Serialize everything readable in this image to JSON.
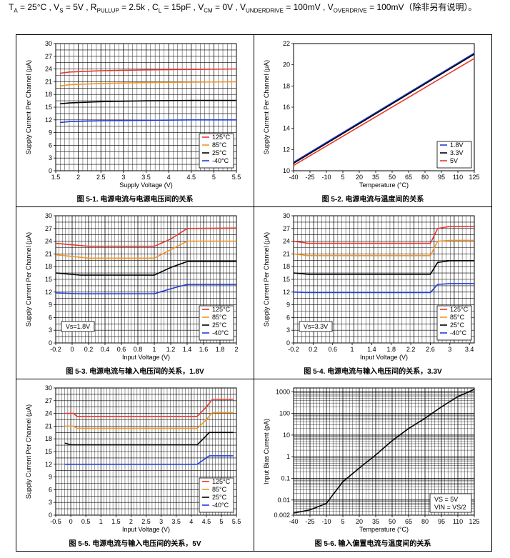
{
  "conditions": {
    "ta": "T",
    "ta_sub": "A",
    "ta_val": " = 25°C , V",
    "vs_sub": "S",
    "vs_val": " = 5V , R",
    "rp_sub": "PULLUP",
    "rp_val": " = 2.5k , C",
    "cl_sub": "L",
    "cl_val": " = 15pF , V",
    "vcm_sub": "CM",
    "vcm_val": " = 0V , V",
    "vu_sub": "UNDERDRIVE",
    "vu_val": " = 100mV , V",
    "vo_sub": "OVERDRIVE",
    "vo_val": " = 100mV（除非另有说明）。"
  },
  "chart_data": [
    {
      "id": "c1",
      "type": "line",
      "caption": "图 5-1. 电源电流与电源电压间的关系",
      "xlabel": "Supply Voltage (V)",
      "ylabel": "Supply Current Per Channel (μA)",
      "xlim": [
        1.5,
        5.5
      ],
      "ylim": [
        0,
        30
      ],
      "xticks": [
        1.5,
        2,
        2.5,
        3,
        3.5,
        4,
        4.5,
        5,
        5.5
      ],
      "xtick_labels": [
        "1.5",
        "2",
        "2.5",
        "3",
        "3.5",
        "4",
        "4.5",
        "5",
        "5.5"
      ],
      "yticks": [
        0,
        3,
        6,
        9,
        12,
        15,
        18,
        21,
        24,
        27,
        30
      ],
      "ytick_labels": [
        "0",
        "3",
        "6",
        "9",
        "12",
        "15",
        "18",
        "21",
        "24",
        "27",
        "30"
      ],
      "grid": true,
      "legend_position": "bottom-right",
      "annotation": "",
      "series": [
        {
          "name": "125°C",
          "color": "#e8372c",
          "x": [
            1.6,
            1.8,
            2.5,
            3.5,
            4.5,
            5.5
          ],
          "y": [
            23.0,
            23.3,
            23.6,
            23.8,
            23.9,
            24.0
          ]
        },
        {
          "name": "85°C",
          "color": "#f29422",
          "x": [
            1.6,
            1.8,
            2.5,
            3.5,
            4.5,
            5.5
          ],
          "y": [
            20.0,
            20.3,
            20.6,
            20.8,
            20.9,
            21.0
          ]
        },
        {
          "name": "25°C",
          "color": "#000000",
          "x": [
            1.6,
            1.8,
            2.5,
            3.5,
            4.5,
            5.5
          ],
          "y": [
            15.8,
            16.0,
            16.3,
            16.5,
            16.6,
            16.6
          ]
        },
        {
          "name": "-40°C",
          "color": "#1f3fd8",
          "x": [
            1.6,
            1.8,
            2.5,
            3.5,
            4.5,
            5.5
          ],
          "y": [
            11.4,
            11.6,
            11.8,
            11.9,
            12.0,
            12.0
          ]
        }
      ]
    },
    {
      "id": "c2",
      "type": "line",
      "caption": "图 5-2. 电源电流与温度间的关系",
      "xlabel": "Temperature (°C)",
      "ylabel": "Supply Current Per Channel (μA)",
      "xlim": [
        -40,
        125
      ],
      "ylim": [
        10,
        22
      ],
      "xticks": [
        -40,
        -25,
        -10,
        5,
        20,
        35,
        50,
        65,
        80,
        95,
        110,
        125
      ],
      "xtick_labels": [
        "-40",
        "-25",
        "-10",
        "5",
        "20",
        "35",
        "50",
        "65",
        "80",
        "95",
        "110",
        "125"
      ],
      "yticks": [
        10,
        12,
        14,
        16,
        18,
        20,
        22
      ],
      "ytick_labels": [
        "10",
        "12",
        "14",
        "16",
        "18",
        "20",
        "22"
      ],
      "grid": false,
      "legend_position": "bottom-right",
      "annotation": "",
      "series": [
        {
          "name": "1.8V",
          "color": "#1f3fd8",
          "x": [
            -40,
            125
          ],
          "y": [
            10.8,
            21.1
          ]
        },
        {
          "name": "3.3V",
          "color": "#000000",
          "x": [
            -40,
            125
          ],
          "y": [
            10.7,
            21.0
          ]
        },
        {
          "name": "5V",
          "color": "#e8372c",
          "x": [
            -40,
            125
          ],
          "y": [
            10.5,
            20.6
          ]
        }
      ]
    },
    {
      "id": "c3",
      "type": "line",
      "caption": "图 5-3. 电源电流与输入电压间的关系，1.8V",
      "xlabel": "Input Voltage (V)",
      "ylabel": "Supply Current Per Channel (μA)",
      "xlim": [
        -0.2,
        2
      ],
      "ylim": [
        0,
        30
      ],
      "xticks": [
        -0.2,
        0,
        0.2,
        0.4,
        0.6,
        0.8,
        1,
        1.2,
        1.4,
        1.6,
        1.8,
        2
      ],
      "xtick_labels": [
        "-0.2",
        "0",
        "0.2",
        "0.4",
        "0.6",
        "0.8",
        "1",
        "1.2",
        "1.4",
        "1.6",
        "1.8",
        "2"
      ],
      "yticks": [
        0,
        3,
        6,
        9,
        12,
        15,
        18,
        21,
        24,
        27,
        30
      ],
      "ytick_labels": [
        "0",
        "3",
        "6",
        "9",
        "12",
        "15",
        "18",
        "21",
        "24",
        "27",
        "30"
      ],
      "grid": true,
      "legend_position": "bottom-right",
      "annotation": "Vs=1.8V",
      "series": [
        {
          "name": "125°C",
          "color": "#e8372c",
          "x": [
            -0.2,
            0.2,
            1.0,
            1.2,
            1.4,
            2.0
          ],
          "y": [
            23.5,
            22.8,
            22.8,
            24.5,
            27.0,
            27.1
          ]
        },
        {
          "name": "85°C",
          "color": "#f29422",
          "x": [
            -0.2,
            0.2,
            1.0,
            1.2,
            1.4,
            2.0
          ],
          "y": [
            20.8,
            20.0,
            20.0,
            22.0,
            24.0,
            24.0
          ]
        },
        {
          "name": "25°C",
          "color": "#000000",
          "x": [
            -0.2,
            0.1,
            1.0,
            1.2,
            1.4,
            2.0
          ],
          "y": [
            16.5,
            16.0,
            16.0,
            17.8,
            19.2,
            19.2
          ]
        },
        {
          "name": "-40°C",
          "color": "#1f3fd8",
          "x": [
            -0.2,
            0.1,
            1.0,
            1.2,
            1.4,
            2.0
          ],
          "y": [
            11.8,
            11.6,
            11.6,
            12.8,
            13.8,
            13.8
          ]
        }
      ]
    },
    {
      "id": "c4",
      "type": "line",
      "caption": "图 5-4. 电源电流与输入电压间的关系，3.3V",
      "xlabel": "Input Voltage (V)",
      "ylabel": "Supply Current Per Channel (μA)",
      "xlim": [
        -0.2,
        3.5
      ],
      "ylim": [
        0,
        30
      ],
      "xticks": [
        -0.2,
        0.2,
        0.6,
        1,
        1.4,
        1.8,
        2.2,
        2.6,
        3,
        3.4
      ],
      "xtick_labels": [
        "-0.2",
        "0.2",
        "0.6",
        "1",
        "1.4",
        "1.8",
        "2.2",
        "2.6",
        "3",
        "3.4"
      ],
      "yticks": [
        0,
        3,
        6,
        9,
        12,
        15,
        18,
        21,
        24,
        27,
        30
      ],
      "ytick_labels": [
        "0",
        "3",
        "6",
        "9",
        "12",
        "15",
        "18",
        "21",
        "24",
        "27",
        "30"
      ],
      "grid": true,
      "legend_position": "bottom-right",
      "annotation": "Vs=3.3V",
      "series": [
        {
          "name": "125°C",
          "color": "#e8372c",
          "x": [
            -0.2,
            0.1,
            2.6,
            2.75,
            3.0,
            3.5
          ],
          "y": [
            24.0,
            23.5,
            23.5,
            27.0,
            27.5,
            27.5
          ]
        },
        {
          "name": "85°C",
          "color": "#f29422",
          "x": [
            -0.2,
            0.1,
            2.6,
            2.75,
            3.0,
            3.5
          ],
          "y": [
            21.0,
            20.6,
            20.6,
            24.0,
            24.2,
            24.2
          ]
        },
        {
          "name": "25°C",
          "color": "#000000",
          "x": [
            -0.2,
            0.1,
            2.6,
            2.75,
            3.0,
            3.5
          ],
          "y": [
            16.5,
            16.2,
            16.2,
            19.0,
            19.4,
            19.4
          ]
        },
        {
          "name": "-40°C",
          "color": "#1f3fd8",
          "x": [
            -0.2,
            0.1,
            2.6,
            2.75,
            3.0,
            3.5
          ],
          "y": [
            12.0,
            11.9,
            11.9,
            13.8,
            14.0,
            14.0
          ]
        }
      ]
    },
    {
      "id": "c5",
      "type": "line",
      "caption": "图 5-5. 电源电流与输入电压间的关系，5V",
      "xlabel": "Input Voltage (V)",
      "ylabel": "Supply Current Per Channel (μA)",
      "xlim": [
        -0.5,
        5.5
      ],
      "ylim": [
        0,
        30
      ],
      "xticks": [
        -0.5,
        0,
        0.5,
        1,
        1.5,
        2,
        2.5,
        3,
        3.5,
        4,
        4.5,
        5,
        5.5
      ],
      "xtick_labels": [
        "-0.5",
        "0",
        "0.5",
        "1",
        "1.5",
        "2",
        "2.5",
        "3",
        "3.5",
        "4",
        "4.5",
        "5",
        "5.5"
      ],
      "yticks": [
        0,
        3,
        6,
        9,
        12,
        15,
        18,
        21,
        24,
        27,
        30
      ],
      "ytick_labels": [
        "0",
        "3",
        "6",
        "9",
        "12",
        "15",
        "18",
        "21",
        "24",
        "27",
        "30"
      ],
      "grid": true,
      "legend_position": "bottom-right",
      "annotation": "",
      "series": [
        {
          "name": "125°C",
          "color": "#e8372c",
          "x": [
            -0.2,
            0.1,
            0.2,
            4.2,
            4.5,
            4.7,
            5.4
          ],
          "y": [
            24.0,
            24.0,
            23.3,
            23.3,
            25.5,
            27.3,
            27.3
          ]
        },
        {
          "name": "85°C",
          "color": "#f29422",
          "x": [
            -0.2,
            0.1,
            0.2,
            4.2,
            4.5,
            4.7,
            5.4
          ],
          "y": [
            21.0,
            21.0,
            20.5,
            20.5,
            22.5,
            24.2,
            24.2
          ]
        },
        {
          "name": "25°C",
          "color": "#000000",
          "x": [
            -0.2,
            0.0,
            4.2,
            4.4,
            4.6,
            5.4
          ],
          "y": [
            17.0,
            16.6,
            16.6,
            18.0,
            19.5,
            19.5
          ]
        },
        {
          "name": "-40°C",
          "color": "#1f3fd8",
          "x": [
            -0.2,
            4.2,
            4.4,
            4.6,
            5.4
          ],
          "y": [
            12.0,
            12.0,
            13.0,
            14.0,
            14.0
          ]
        }
      ]
    },
    {
      "id": "c6",
      "type": "line",
      "yscale": "log",
      "caption": "图 5-6. 输入偏置电流与温度间的关系",
      "xlabel": "Temperature (°C)",
      "ylabel": "Input Bias Current (pA)",
      "xlim": [
        -40,
        125
      ],
      "ylim": [
        0.002,
        1500
      ],
      "xticks": [
        -40,
        -25,
        -10,
        5,
        20,
        35,
        50,
        65,
        80,
        95,
        110,
        125
      ],
      "xtick_labels": [
        "-40",
        "-25",
        "-10",
        "5",
        "20",
        "35",
        "50",
        "65",
        "80",
        "95",
        "110",
        "125"
      ],
      "yticks": [
        0.002,
        0.01,
        0.1,
        1,
        10,
        100,
        1000
      ],
      "ytick_labels": [
        "0.002",
        "0.01",
        "0.1",
        "1",
        "10",
        "100",
        "1000"
      ],
      "grid": true,
      "legend_position": "bottom-right",
      "annotation": "",
      "series": [
        {
          "name": "",
          "color": "#000000",
          "x": [
            -40,
            -25,
            -10,
            5,
            20,
            35,
            50,
            65,
            80,
            95,
            110,
            125
          ],
          "y": [
            0.0025,
            0.0035,
            0.007,
            0.07,
            0.3,
            1.2,
            5.5,
            20,
            60,
            200,
            600,
            1300
          ]
        }
      ],
      "legend_lines": [
        "VS = 5V",
        "VIN = VS/2"
      ]
    }
  ]
}
